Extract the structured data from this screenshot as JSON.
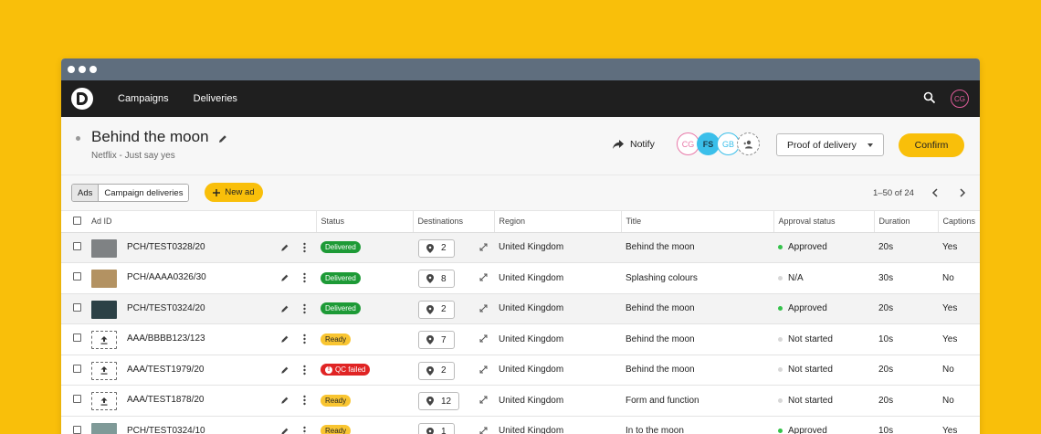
{
  "nav": {
    "links": [
      "Campaigns",
      "Deliveries"
    ],
    "user_initials": "CG"
  },
  "header": {
    "title": "Behind the moon",
    "subtitle": "Netflix - Just say yes",
    "notify_label": "Notify",
    "avatars": [
      "CG",
      "FS",
      "GB"
    ],
    "proof_select_value": "Proof of delivery",
    "confirm_label": "Confirm"
  },
  "toolbar": {
    "tabs": [
      "Ads",
      "Campaign deliveries"
    ],
    "new_ad_label": "New ad",
    "pager_text": "1–50 of 24"
  },
  "table": {
    "columns": [
      "Ad ID",
      "Status",
      "Destinations",
      "Region",
      "Title",
      "Approval status",
      "Duration",
      "Captions"
    ],
    "rows": [
      {
        "ad_id": "PCH/TEST0328/20",
        "thumb": "image",
        "thumb_color": "#7f8284",
        "status": "Delivered",
        "status_kind": "delivered",
        "destinations": "2",
        "region": "United Kingdom",
        "title": "Behind the moon",
        "approval": "Approved",
        "approval_color": "#34c24a",
        "duration": "20s",
        "captions": "Yes"
      },
      {
        "ad_id": "PCH/AAAA0326/30",
        "thumb": "image",
        "thumb_color": "#b39262",
        "status": "Delivered",
        "status_kind": "delivered",
        "destinations": "8",
        "region": "United Kingdom",
        "title": "Splashing colours",
        "approval": "N/A",
        "approval_color": "#d7d7d7",
        "duration": "30s",
        "captions": "No"
      },
      {
        "ad_id": "PCH/TEST0324/20",
        "thumb": "image",
        "thumb_color": "#2c4146",
        "status": "Delivered",
        "status_kind": "delivered",
        "destinations": "2",
        "region": "United Kingdom",
        "title": "Behind the moon",
        "approval": "Approved",
        "approval_color": "#34c24a",
        "duration": "20s",
        "captions": "Yes"
      },
      {
        "ad_id": "AAA/BBBB123/123",
        "thumb": "upload",
        "status": "Ready",
        "status_kind": "ready",
        "destinations": "7",
        "region": "United Kingdom",
        "title": "Behind the moon",
        "approval": "Not started",
        "approval_color": "#d7d7d7",
        "duration": "10s",
        "captions": "Yes"
      },
      {
        "ad_id": "AAA/TEST1979/20",
        "thumb": "upload",
        "status": "QC failed",
        "status_kind": "qc",
        "destinations": "2",
        "region": "United Kingdom",
        "title": "Behind the moon",
        "approval": "Not started",
        "approval_color": "#d7d7d7",
        "duration": "20s",
        "captions": "No"
      },
      {
        "ad_id": "AAA/TEST1878/20",
        "thumb": "upload",
        "status": "Ready",
        "status_kind": "ready",
        "destinations": "12",
        "region": "United Kingdom",
        "title": "Form and function",
        "approval": "Not started",
        "approval_color": "#d7d7d7",
        "duration": "20s",
        "captions": "No"
      },
      {
        "ad_id": "PCH/TEST0324/10",
        "thumb": "image",
        "thumb_color": "#7f9a98",
        "status": "Ready",
        "status_kind": "ready",
        "destinations": "1",
        "region": "United Kingdom",
        "title": "In to the moon",
        "approval": "Approved",
        "approval_color": "#34c24a",
        "duration": "10s",
        "captions": "Yes"
      }
    ]
  },
  "colors": {
    "accent": "#f9bf0a",
    "nav_bg": "#1f1f1f",
    "chrome": "#5f6e7e"
  }
}
